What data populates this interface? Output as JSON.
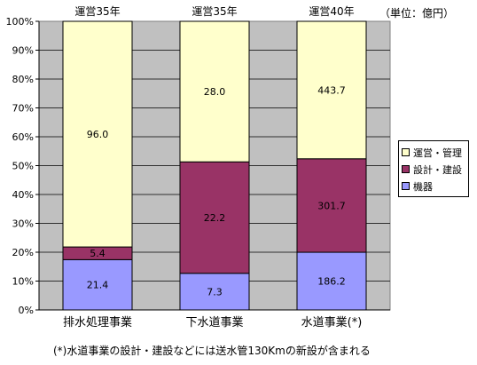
{
  "chart_data": {
    "type": "bar",
    "stacked": "percent",
    "categories": [
      "排水処理事業",
      "下水道事業",
      "水道事業(*)"
    ],
    "top_labels": [
      "運営35年",
      "運営35年",
      "運営40年"
    ],
    "series": [
      {
        "name": "機器",
        "color": "#9999ff",
        "values": [
          21.4,
          7.3,
          186.2
        ]
      },
      {
        "name": "設計・建設",
        "color": "#993366",
        "values": [
          5.4,
          22.2,
          301.7
        ]
      },
      {
        "name": "運営・管理",
        "color": "#ffffcc",
        "values": [
          96.0,
          28.0,
          443.7
        ]
      }
    ],
    "value_labels": [
      [
        "21.4",
        "7.3",
        "186.2"
      ],
      [
        "5.4",
        "22.2",
        "301.7"
      ],
      [
        "96.0",
        "28.0",
        "443.7"
      ]
    ],
    "ylim": [
      0,
      100
    ],
    "y_ticks": [
      "0%",
      "10%",
      "20%",
      "30%",
      "40%",
      "50%",
      "60%",
      "70%",
      "80%",
      "90%",
      "100%"
    ],
    "legend_order": [
      "運営・管理",
      "設計・建設",
      "機器"
    ],
    "legend_position": "right",
    "grid": true,
    "plot_background": "#c0c0c0"
  },
  "unit_label": "（単位：億円）",
  "footnote": "(*)水道事業の設計・建設などには送水管130Kmの新設が含まれる"
}
